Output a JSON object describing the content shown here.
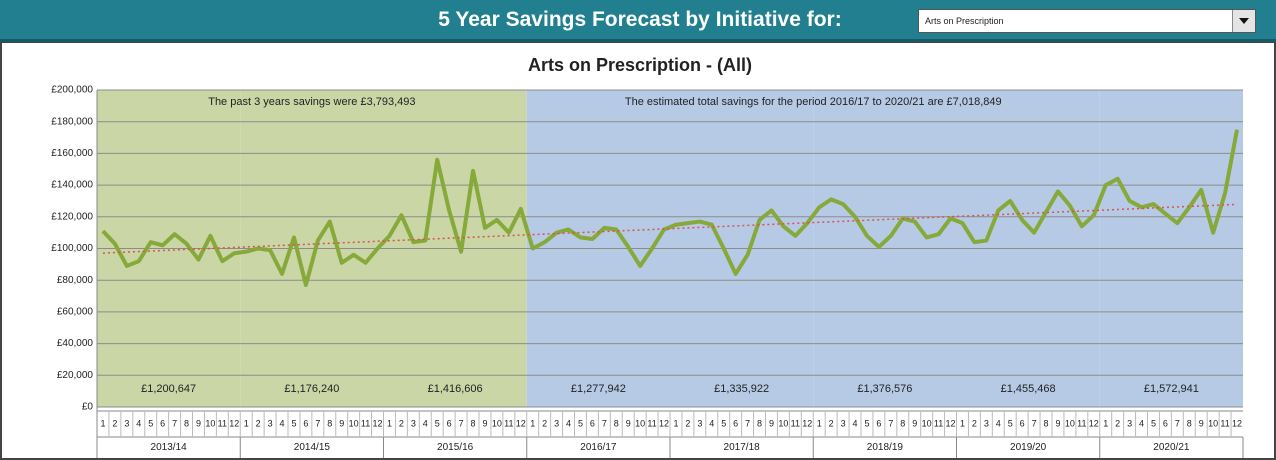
{
  "header": {
    "title": "5 Year Savings Forecast by Initiative for:",
    "dropdown": "Arts on Prescription"
  },
  "chart_data": {
    "type": "line",
    "title": "Arts on Prescription - (All)",
    "categories": [
      "1",
      "2",
      "3",
      "4",
      "5",
      "6",
      "7",
      "8",
      "9",
      "10",
      "11",
      "12",
      "1",
      "2",
      "3",
      "4",
      "5",
      "6",
      "7",
      "8",
      "9",
      "10",
      "11",
      "12",
      "1",
      "2",
      "3",
      "4",
      "5",
      "6",
      "7",
      "8",
      "9",
      "10",
      "11",
      "12",
      "1",
      "2",
      "3",
      "4",
      "5",
      "6",
      "7",
      "8",
      "9",
      "10",
      "11",
      "12",
      "1",
      "2",
      "3",
      "4",
      "5",
      "6",
      "7",
      "8",
      "9",
      "10",
      "11",
      "12",
      "1",
      "2",
      "3",
      "4",
      "5",
      "6",
      "7",
      "8",
      "9",
      "10",
      "11",
      "12",
      "1",
      "2",
      "3",
      "4",
      "5",
      "6",
      "7",
      "8",
      "9",
      "10",
      "11",
      "12",
      "1",
      "2",
      "3",
      "4",
      "5",
      "6",
      "7",
      "8",
      "9",
      "10",
      "11",
      "12"
    ],
    "groups": [
      "2013/14",
      "2014/15",
      "2015/16",
      "2016/17",
      "2017/18",
      "2018/19",
      "2019/20",
      "2020/21"
    ],
    "group_totals": [
      "£1,200,647",
      "£1,176,240",
      "£1,416,606",
      "£1,277,942",
      "£1,335,922",
      "£1,376,576",
      "£1,455,468",
      "£1,572,941"
    ],
    "group_colors": [
      "#cad6a6",
      "#cad6a6",
      "#cad6a6",
      "#b6cae6",
      "#b6cae6",
      "#b6cae6",
      "#b6cae6",
      "#b6cae6"
    ],
    "annotations": [
      "The past 3 years savings were £3,793,493",
      "The estimated total savings for the period 2016/17 to 2020/21 are £7,018,849"
    ],
    "series": [
      {
        "color": "#86a93a",
        "values": [
          111000,
          103000,
          89000,
          92000,
          104000,
          102000,
          109000,
          103000,
          93000,
          108000,
          92000,
          97000,
          98000,
          100000,
          99000,
          84000,
          107000,
          77000,
          105000,
          117000,
          91000,
          96000,
          91000,
          100000,
          108000,
          121000,
          104000,
          105000,
          156000,
          124000,
          98000,
          149000,
          113000,
          118000,
          110000,
          125000,
          100000,
          104000,
          110000,
          112000,
          107000,
          106000,
          113000,
          112000,
          101000,
          89000,
          100000,
          112000,
          115000,
          116000,
          117000,
          115000,
          100000,
          84000,
          96000,
          118000,
          124000,
          114000,
          108000,
          116000,
          126000,
          131000,
          128000,
          120000,
          108000,
          101000,
          108000,
          119000,
          117000,
          107000,
          109000,
          119000,
          116000,
          104000,
          105000,
          124000,
          130000,
          118000,
          110000,
          123000,
          136000,
          127000,
          114000,
          121000,
          140000,
          144000,
          130000,
          126000,
          128000,
          122000,
          116000,
          126000,
          137000,
          110000,
          135000,
          175000
        ]
      }
    ],
    "trendline": true,
    "trend_color": "#d9534f",
    "ylim": [
      0,
      200000
    ],
    "yticks": [
      {
        "value": 0,
        "label": "£0"
      },
      {
        "value": 20000,
        "label": "£20,000"
      },
      {
        "value": 40000,
        "label": "£40,000"
      },
      {
        "value": 60000,
        "label": "£60,000"
      },
      {
        "value": 80000,
        "label": "£80,000"
      },
      {
        "value": 100000,
        "label": "£100,000"
      },
      {
        "value": 120000,
        "label": "£120,000"
      },
      {
        "value": 140000,
        "label": "£140,000"
      },
      {
        "value": 160000,
        "label": "£160,000"
      },
      {
        "value": 180000,
        "label": "£180,000"
      },
      {
        "value": 200000,
        "label": "£200,000"
      }
    ],
    "grid": true
  }
}
